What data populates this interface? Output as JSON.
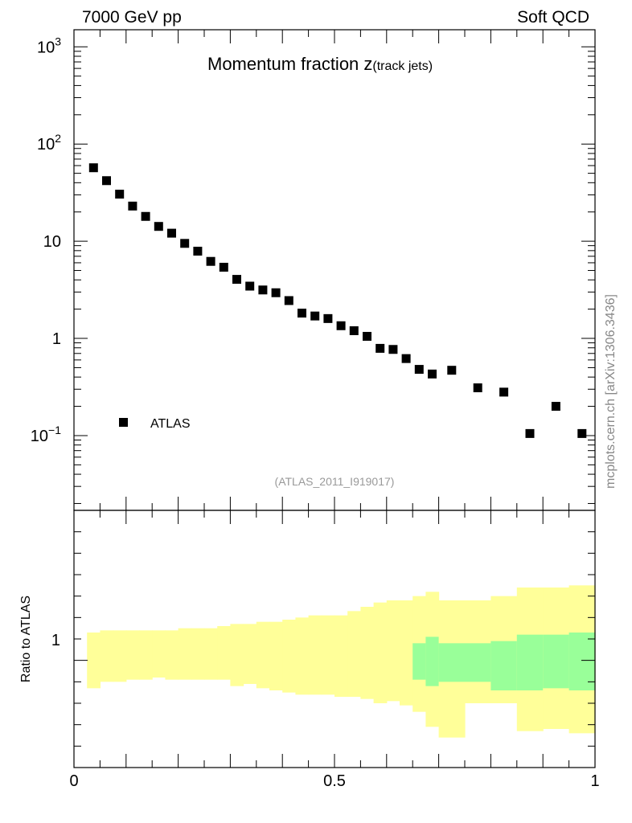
{
  "header": {
    "left": "7000 GeV pp",
    "right": "Soft QCD"
  },
  "side_label": "mcplots.cern.ch [arXiv:1306.3436]",
  "analysis_id": "(ATLAS_2011_I919017)",
  "legend": {
    "marker_color": "#000000"
  },
  "ratio_panel": {
    "ylabel": "Ratio to ATLAS",
    "ytick_label": "1",
    "colors": {
      "outer_band": "#ffff99",
      "inner_band": "#99ff99"
    }
  },
  "chart_data": {
    "type": "scatter",
    "title_main": "Momentum fraction ",
    "title_var": "z",
    "title_sub": "(track jets)",
    "log_y": true,
    "ylim": [
      0.017,
      1500
    ],
    "xlim": [
      0,
      1
    ],
    "y_tick_labels": [
      {
        "value": 1000,
        "base": "10",
        "exp": "3"
      },
      {
        "value": 100,
        "base": "10",
        "exp": "2"
      },
      {
        "value": 10,
        "base": "10",
        "exp": ""
      },
      {
        "value": 1,
        "base": "1",
        "exp": ""
      },
      {
        "value": 0.1,
        "base": "10",
        "exp": "−1"
      }
    ],
    "x_tick_labels": [
      {
        "value": 0,
        "label": "0"
      },
      {
        "value": 0.5,
        "label": "0.5"
      },
      {
        "value": 1,
        "label": "1"
      }
    ],
    "series": [
      {
        "name": "ATLAS",
        "x": [
          0.0375,
          0.0625,
          0.0875,
          0.1125,
          0.1375,
          0.1625,
          0.1875,
          0.2125,
          0.2375,
          0.2625,
          0.2875,
          0.3125,
          0.3375,
          0.3625,
          0.3875,
          0.4125,
          0.4375,
          0.4625,
          0.4875,
          0.5125,
          0.5375,
          0.5625,
          0.5875,
          0.6125,
          0.6375,
          0.6625,
          0.6875,
          0.725,
          0.775,
          0.825,
          0.875,
          0.925,
          0.975
        ],
        "y": [
          57,
          42,
          30.5,
          23,
          18,
          14.2,
          12.1,
          9.5,
          7.9,
          6.2,
          5.4,
          4.05,
          3.45,
          3.15,
          2.95,
          2.45,
          1.82,
          1.7,
          1.6,
          1.35,
          1.2,
          1.05,
          0.79,
          0.77,
          0.62,
          0.48,
          0.43,
          0.47,
          0.31,
          0.28,
          0.105,
          0.2,
          0.105
        ]
      }
    ],
    "ratio": {
      "ylim": [
        0.5,
        1.7
      ],
      "bins": [
        0.025,
        0.05,
        0.075,
        0.1,
        0.125,
        0.15,
        0.175,
        0.2,
        0.225,
        0.25,
        0.275,
        0.3,
        0.325,
        0.35,
        0.375,
        0.4,
        0.425,
        0.45,
        0.475,
        0.5,
        0.525,
        0.55,
        0.575,
        0.6,
        0.625,
        0.65,
        0.675,
        0.7,
        0.75,
        0.8,
        0.85,
        0.9,
        0.95,
        1.0
      ],
      "outer_lo": [
        0.87,
        0.9,
        0.9,
        0.91,
        0.91,
        0.92,
        0.91,
        0.91,
        0.91,
        0.91,
        0.91,
        0.88,
        0.89,
        0.87,
        0.86,
        0.85,
        0.84,
        0.84,
        0.84,
        0.83,
        0.83,
        0.82,
        0.8,
        0.81,
        0.79,
        0.76,
        0.69,
        0.64,
        0.8,
        0.8,
        0.67,
        0.68,
        0.66
      ],
      "outer_hi": [
        1.13,
        1.14,
        1.14,
        1.14,
        1.14,
        1.14,
        1.14,
        1.15,
        1.15,
        1.15,
        1.16,
        1.17,
        1.17,
        1.18,
        1.18,
        1.19,
        1.2,
        1.21,
        1.21,
        1.21,
        1.23,
        1.25,
        1.27,
        1.28,
        1.28,
        1.3,
        1.32,
        1.28,
        1.28,
        1.3,
        1.34,
        1.34,
        1.35
      ],
      "inner_lo": [
        null,
        null,
        null,
        null,
        null,
        null,
        null,
        null,
        null,
        null,
        null,
        null,
        null,
        null,
        null,
        null,
        null,
        null,
        null,
        null,
        null,
        null,
        null,
        null,
        null,
        0.91,
        0.88,
        0.9,
        0.9,
        0.86,
        0.86,
        0.87,
        0.86
      ],
      "inner_hi": [
        null,
        null,
        null,
        null,
        null,
        null,
        null,
        null,
        null,
        null,
        null,
        null,
        null,
        null,
        null,
        null,
        null,
        null,
        null,
        null,
        null,
        null,
        null,
        null,
        null,
        1.08,
        1.11,
        1.08,
        1.08,
        1.09,
        1.12,
        1.12,
        1.13
      ]
    }
  }
}
